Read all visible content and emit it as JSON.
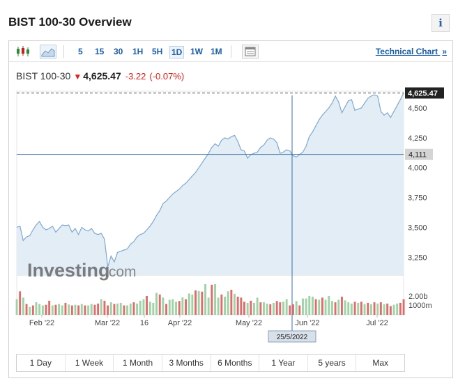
{
  "page_title": "BIST 100-30 Overview",
  "info_glyph": "i",
  "toolbar": {
    "chart_type_icons": [
      "candlestick-icon",
      "area-chart-icon"
    ],
    "timeframes": [
      {
        "label": "5",
        "active": false
      },
      {
        "label": "15",
        "active": false
      },
      {
        "label": "30",
        "active": false
      },
      {
        "label": "1H",
        "active": false
      },
      {
        "label": "5H",
        "active": false
      },
      {
        "label": "1D",
        "active": true
      },
      {
        "label": "1W",
        "active": false
      },
      {
        "label": "1M",
        "active": false
      }
    ],
    "layout_icon": "table-icon",
    "technical_chart_label": "Technical Chart",
    "technical_chart_arrow": "»"
  },
  "quote": {
    "name": "BIST 100-30",
    "arrow": "🡇",
    "price": "4,625.47",
    "change": "-3.22",
    "change_pct": "(-0.07%)"
  },
  "colors": {
    "line": "#7fa8cf",
    "fill": "#e3edf6",
    "up_volume": "#9fd3a5",
    "down_volume": "#e06b6b",
    "accent": "#1a5ea8",
    "negative": "#e0201b"
  },
  "chart_data": {
    "type": "area",
    "price_axis": {
      "ticks": [
        "4,500",
        "4,250",
        "4,000",
        "3,750",
        "3,500",
        "3,250"
      ],
      "values": [
        4500,
        4250,
        4000,
        3750,
        3500,
        3250
      ],
      "range": [
        3100,
        4640
      ]
    },
    "last_price_label": "4,625.47",
    "last_price": 4625.47,
    "crosshair_price_label": "4,111",
    "crosshair_price": 4111,
    "crosshair_date_label": "25/5/2022",
    "volume_axis": {
      "ticks": [
        "2.00b",
        "1000m"
      ]
    },
    "x_ticks": [
      "Feb '22",
      "Mar '22",
      "16",
      "Apr '22",
      "May '22",
      "Jun '22",
      "Jul '22"
    ],
    "watermark": {
      "brand": "Investing",
      "suffix": ".com"
    },
    "series": [
      {
        "values": [
          3500,
          3510,
          3390,
          3420,
          3430,
          3480,
          3520,
          3550,
          3500,
          3480,
          3490,
          3510,
          3460,
          3490,
          3520,
          3515,
          3520,
          3460,
          3490,
          3440,
          3500,
          3480,
          3470,
          3490,
          3450,
          3440,
          3450,
          3400,
          3170,
          3260,
          3210,
          3290,
          3300,
          3310,
          3320,
          3360,
          3380,
          3420,
          3440,
          3450,
          3480,
          3510,
          3550,
          3600,
          3640,
          3700,
          3720,
          3750,
          3780,
          3800,
          3820,
          3850,
          3870,
          3900,
          3930,
          3960,
          4000,
          4040,
          4080,
          4120,
          4170,
          4200,
          4180,
          4230,
          4250,
          4240,
          4260,
          4270,
          4220,
          4150,
          4140,
          4080,
          4110,
          4120,
          4130,
          4170,
          4190,
          4230,
          4250,
          4240,
          4210,
          4120,
          4130,
          4150,
          4140,
          4100,
          4090,
          4110,
          4130,
          4180,
          4260,
          4300,
          4350,
          4400,
          4440,
          4470,
          4500,
          4540,
          4600,
          4550,
          4460,
          4510,
          4560,
          4570,
          4480,
          4490,
          4500,
          4540,
          4580,
          4600,
          4610,
          4600,
          4470,
          4440,
          4460,
          4420,
          4470,
          4520,
          4570,
          4625.47
        ]
      },
      {
        "volume": [
          0.5,
          0.75,
          0.55,
          0.35,
          0.25,
          0.3,
          0.4,
          0.35,
          0.3,
          0.32,
          0.45,
          0.3,
          0.32,
          0.35,
          0.3,
          0.38,
          0.33,
          0.3,
          0.32,
          0.3,
          0.35,
          0.3,
          0.3,
          0.35,
          0.32,
          0.36,
          0.5,
          0.45,
          0.3,
          0.4,
          0.35,
          0.36,
          0.38,
          0.3,
          0.3,
          0.36,
          0.4,
          0.36,
          0.45,
          0.5,
          0.6,
          0.42,
          0.38,
          0.7,
          0.65,
          0.55,
          0.35,
          0.48,
          0.5,
          0.42,
          0.44,
          0.56,
          0.5,
          0.68,
          0.65,
          0.78,
          0.76,
          0.74,
          0.98,
          0.55,
          0.96,
          0.98,
          0.55,
          0.65,
          0.58,
          0.75,
          0.8,
          0.67,
          0.58,
          0.55,
          0.42,
          0.38,
          0.45,
          0.38,
          0.55,
          0.4,
          0.4,
          0.36,
          0.34,
          0.38,
          0.44,
          0.4,
          0.42,
          0.5,
          0.3,
          0.34,
          0.44,
          0.3,
          0.52,
          0.52,
          0.6,
          0.58,
          0.5,
          0.48,
          0.55,
          0.48,
          0.6,
          0.44,
          0.4,
          0.48,
          0.58,
          0.46,
          0.4,
          0.36,
          0.42,
          0.38,
          0.42,
          0.34,
          0.38,
          0.34,
          0.4,
          0.36,
          0.4,
          0.34,
          0.36,
          0.28,
          0.32,
          0.36,
          0.38,
          0.5
        ],
        "down": [
          0,
          1,
          0,
          1,
          0,
          1,
          0,
          0,
          0,
          1,
          1,
          0,
          1,
          0,
          0,
          1,
          0,
          1,
          0,
          1,
          0,
          1,
          0,
          0,
          1,
          1,
          0,
          1,
          1,
          0,
          1,
          0,
          0,
          1,
          0,
          0,
          1,
          0,
          0,
          0,
          1,
          0,
          0,
          0,
          1,
          0,
          1,
          0,
          0,
          0,
          1,
          0,
          1,
          0,
          0,
          1,
          0,
          1,
          0,
          0,
          1,
          0,
          0,
          1,
          0,
          0,
          1,
          0,
          1,
          1,
          1,
          0,
          1,
          0,
          0,
          1,
          0,
          0,
          1,
          0,
          1,
          1,
          0,
          0,
          1,
          1,
          0,
          1,
          0,
          0,
          0,
          0,
          1,
          0,
          1,
          0,
          0,
          0,
          1,
          0,
          1,
          0,
          0,
          0,
          1,
          0,
          1,
          0,
          1,
          0,
          1,
          0,
          1,
          0,
          1,
          1,
          0,
          0,
          1,
          1
        ]
      }
    ]
  },
  "ranges": [
    "1 Day",
    "1 Week",
    "1 Month",
    "3 Months",
    "6 Months",
    "1 Year",
    "5 years",
    "Max"
  ]
}
